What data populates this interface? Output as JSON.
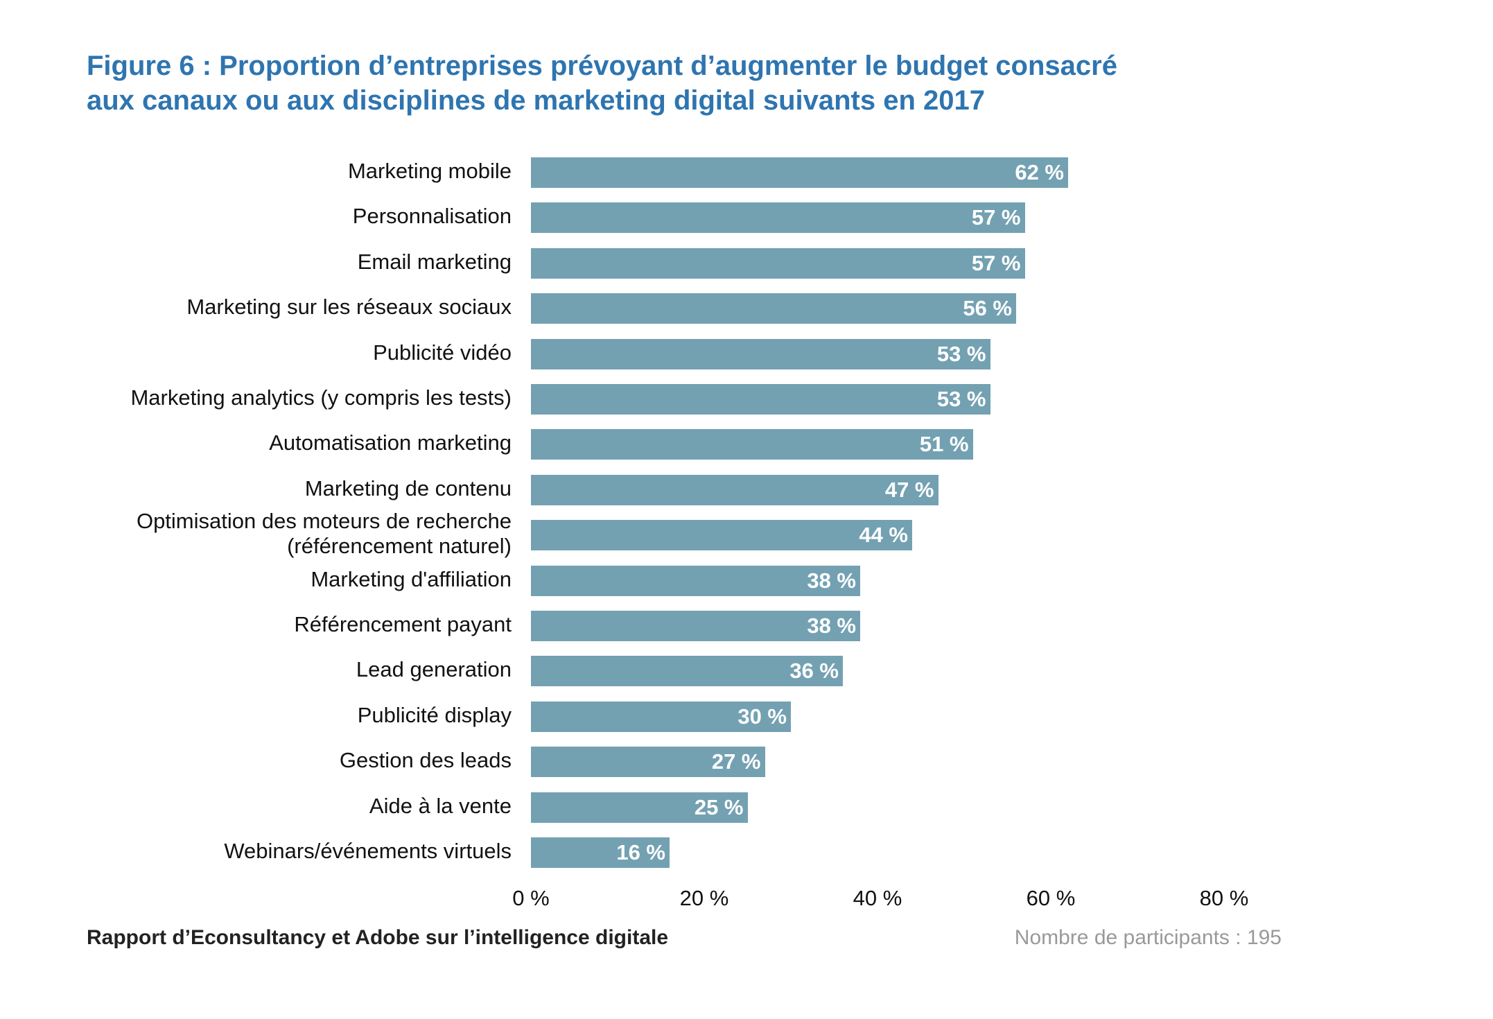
{
  "title_line1": "Figure 6 : Proportion d’entreprises prévoyant d’augmenter le budget consacré",
  "title_line2": "aux canaux ou aux disciplines de marketing digital suivants en 2017",
  "footer": {
    "source": "Rapport d’Econsultancy et Adobe sur l’intelligence digitale",
    "participants": "Nombre de participants : 195"
  },
  "colors": {
    "title": "#2e75b0",
    "bar": "#73a1b2"
  },
  "chart_data": {
    "type": "bar",
    "orientation": "horizontal",
    "title": "Figure 6 : Proportion d’entreprises prévoyant d’augmenter le budget consacré aux canaux ou aux disciplines de marketing digital suivants en 2017",
    "categories": [
      [
        "Marketing mobile"
      ],
      [
        "Personnalisation"
      ],
      [
        "Email marketing"
      ],
      [
        "Marketing sur les réseaux sociaux"
      ],
      [
        "Publicité vidéo"
      ],
      [
        "Marketing analytics (y compris les tests)"
      ],
      [
        "Automatisation marketing"
      ],
      [
        "Marketing de contenu"
      ],
      [
        "Optimisation des moteurs de recherche",
        "(référencement naturel)"
      ],
      [
        "Marketing d'affiliation"
      ],
      [
        "Référencement payant"
      ],
      [
        "Lead generation"
      ],
      [
        "Publicité display"
      ],
      [
        "Gestion des leads"
      ],
      [
        "Aide à la vente"
      ],
      [
        "Webinars/événements virtuels"
      ]
    ],
    "values": [
      62,
      57,
      57,
      56,
      53,
      53,
      51,
      47,
      44,
      38,
      38,
      36,
      30,
      27,
      25,
      16
    ],
    "value_labels": [
      "62 %",
      "57 %",
      "57 %",
      "56 %",
      "53 %",
      "53 %",
      "51 %",
      "47 %",
      "44 %",
      "38 %",
      "38 %",
      "36 %",
      "30 %",
      "27 %",
      "25 %",
      "16 %"
    ],
    "xlim": [
      0,
      80
    ],
    "xticks": [
      0,
      20,
      40,
      60,
      80
    ],
    "xtick_labels": [
      "0 %",
      "20 %",
      "40 %",
      "60 %",
      "80 %"
    ],
    "xlabel": "",
    "ylabel": "",
    "grid": false,
    "legend": null
  }
}
